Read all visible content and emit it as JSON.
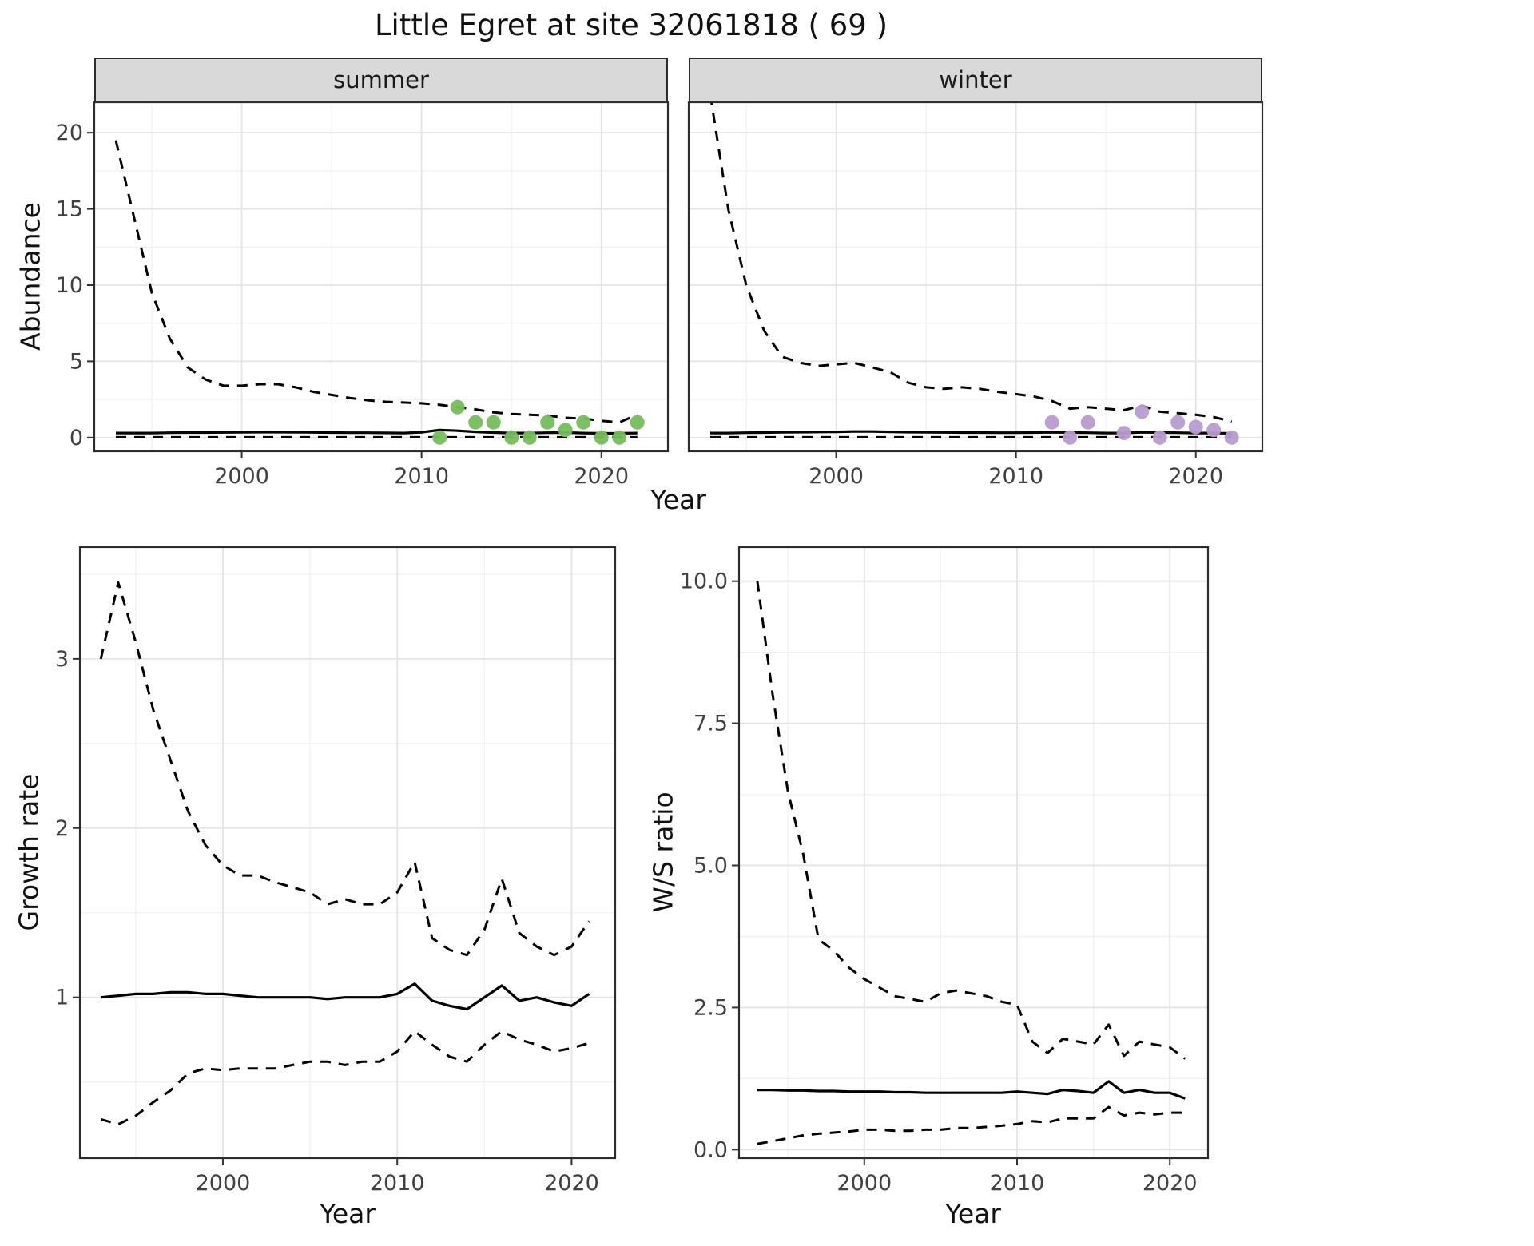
{
  "title": "Little Egret at site 32061818 ( 69 )",
  "colors": {
    "summer_points": "#74BE58",
    "winter_points": "#B69CD0",
    "line": "#000000",
    "strip_background": "#d9d9d9"
  },
  "chart_data": [
    {
      "id": "abundance-summer",
      "type": "line",
      "facet_label": "summer",
      "xlabel": "Year",
      "ylabel": "Abundance",
      "xlim": [
        1991.8,
        2023.7
      ],
      "ylim": [
        -0.9,
        22
      ],
      "xticks": {
        "values": [
          2000,
          2010,
          2020
        ],
        "labels": [
          "2000",
          "2010",
          "2020"
        ]
      },
      "yticks": {
        "values": [
          0,
          5,
          10,
          15,
          20
        ],
        "labels": [
          "0",
          "5",
          "10",
          "15",
          "20"
        ]
      },
      "grid": "major+minor",
      "legend": "none",
      "series": [
        {
          "name": "upper-ci",
          "style": "dashed",
          "x": [
            1993,
            1994,
            1995,
            1996,
            1997,
            1998,
            1999,
            2000,
            2001,
            2002,
            2003,
            2004,
            2005,
            2006,
            2007,
            2008,
            2009,
            2010,
            2011,
            2012,
            2013,
            2014,
            2015,
            2016,
            2017,
            2018,
            2019,
            2020,
            2021,
            2022
          ],
          "y": [
            19.5,
            14.5,
            9.5,
            6.5,
            4.6,
            3.8,
            3.4,
            3.4,
            3.5,
            3.5,
            3.3,
            3.0,
            2.8,
            2.6,
            2.45,
            2.35,
            2.3,
            2.25,
            2.15,
            2.0,
            1.85,
            1.65,
            1.55,
            1.5,
            1.45,
            1.3,
            1.25,
            1.1,
            1.0,
            1.5
          ]
        },
        {
          "name": "median",
          "style": "solid",
          "x": [
            1993,
            1994,
            1995,
            1996,
            1997,
            1998,
            1999,
            2000,
            2001,
            2002,
            2003,
            2004,
            2005,
            2006,
            2007,
            2008,
            2009,
            2010,
            2011,
            2012,
            2013,
            2014,
            2015,
            2016,
            2017,
            2018,
            2019,
            2020,
            2021,
            2022
          ],
          "y": [
            0.3,
            0.3,
            0.3,
            0.32,
            0.33,
            0.33,
            0.34,
            0.35,
            0.36,
            0.36,
            0.35,
            0.34,
            0.33,
            0.32,
            0.32,
            0.31,
            0.3,
            0.35,
            0.5,
            0.45,
            0.38,
            0.33,
            0.3,
            0.3,
            0.32,
            0.33,
            0.3,
            0.28,
            0.28,
            0.3
          ]
        },
        {
          "name": "lower-ci",
          "style": "dashed",
          "x": [
            1993,
            1994,
            1995,
            1996,
            1997,
            1998,
            1999,
            2000,
            2001,
            2002,
            2003,
            2004,
            2005,
            2006,
            2007,
            2008,
            2009,
            2010,
            2011,
            2012,
            2013,
            2014,
            2015,
            2016,
            2017,
            2018,
            2019,
            2020,
            2021,
            2022
          ],
          "y": [
            0.02,
            0.02,
            0.02,
            0.02,
            0.02,
            0.02,
            0.02,
            0.02,
            0.02,
            0.02,
            0.02,
            0.02,
            0.02,
            0.02,
            0.02,
            0.02,
            0.02,
            0.02,
            0.02,
            0.02,
            0.02,
            0.02,
            0.02,
            0.02,
            0.02,
            0.02,
            0.02,
            0.02,
            0.02,
            0.02
          ]
        },
        {
          "name": "observed-counts",
          "style": "points",
          "color": "#74BE58",
          "x": [
            2011,
            2012,
            2013,
            2014,
            2015,
            2016,
            2017,
            2018,
            2019,
            2020,
            2021,
            2022
          ],
          "y": [
            0,
            2,
            1,
            1,
            0,
            0,
            1,
            0.5,
            1,
            0,
            0,
            1
          ]
        }
      ]
    },
    {
      "id": "abundance-winter",
      "type": "line",
      "facet_label": "winter",
      "xlabel": "Year",
      "ylabel": "Abundance",
      "xlim": [
        1991.8,
        2023.7
      ],
      "ylim": [
        -0.9,
        22
      ],
      "xticks": {
        "values": [
          2000,
          2010,
          2020
        ],
        "labels": [
          "2000",
          "2010",
          "2020"
        ]
      },
      "yticks": {
        "values": [
          0,
          5,
          10,
          15,
          20
        ],
        "labels": [
          "0",
          "5",
          "10",
          "15",
          "20"
        ]
      },
      "grid": "major+minor",
      "legend": "none",
      "series": [
        {
          "name": "upper-ci",
          "style": "dashed",
          "x": [
            1993,
            1994,
            1995,
            1996,
            1997,
            1998,
            1999,
            2000,
            2001,
            2002,
            2003,
            2004,
            2005,
            2006,
            2007,
            2008,
            2009,
            2010,
            2011,
            2012,
            2013,
            2014,
            2015,
            2016,
            2017,
            2018,
            2019,
            2020,
            2021,
            2022
          ],
          "y": [
            22.5,
            15.0,
            10.0,
            7.0,
            5.3,
            4.9,
            4.7,
            4.8,
            4.9,
            4.6,
            4.3,
            3.6,
            3.3,
            3.2,
            3.3,
            3.2,
            3.0,
            2.85,
            2.7,
            2.4,
            1.9,
            2.0,
            1.9,
            1.8,
            2.1,
            1.7,
            1.6,
            1.5,
            1.35,
            1.05
          ]
        },
        {
          "name": "median",
          "style": "solid",
          "x": [
            1993,
            1994,
            1995,
            1996,
            1997,
            1998,
            1999,
            2000,
            2001,
            2002,
            2003,
            2004,
            2005,
            2006,
            2007,
            2008,
            2009,
            2010,
            2011,
            2012,
            2013,
            2014,
            2015,
            2016,
            2017,
            2018,
            2019,
            2020,
            2021,
            2022
          ],
          "y": [
            0.3,
            0.3,
            0.32,
            0.33,
            0.35,
            0.36,
            0.37,
            0.38,
            0.4,
            0.4,
            0.38,
            0.36,
            0.35,
            0.34,
            0.33,
            0.33,
            0.32,
            0.32,
            0.33,
            0.35,
            0.33,
            0.32,
            0.3,
            0.3,
            0.35,
            0.33,
            0.32,
            0.3,
            0.3,
            0.28
          ]
        },
        {
          "name": "lower-ci",
          "style": "dashed",
          "x": [
            1993,
            1994,
            1995,
            1996,
            1997,
            1998,
            1999,
            2000,
            2001,
            2002,
            2003,
            2004,
            2005,
            2006,
            2007,
            2008,
            2009,
            2010,
            2011,
            2012,
            2013,
            2014,
            2015,
            2016,
            2017,
            2018,
            2019,
            2020,
            2021,
            2022
          ],
          "y": [
            0.02,
            0.02,
            0.02,
            0.02,
            0.02,
            0.02,
            0.02,
            0.02,
            0.02,
            0.02,
            0.02,
            0.02,
            0.02,
            0.02,
            0.02,
            0.02,
            0.02,
            0.02,
            0.02,
            0.02,
            0.02,
            0.02,
            0.02,
            0.02,
            0.02,
            0.02,
            0.02,
            0.02,
            0.02,
            0.02
          ]
        },
        {
          "name": "observed-counts",
          "style": "points",
          "color": "#B69CD0",
          "x": [
            2012,
            2013,
            2014,
            2016,
            2017,
            2018,
            2019,
            2020,
            2021,
            2022
          ],
          "y": [
            1,
            0,
            1,
            0.3,
            1.7,
            0,
            1,
            0.7,
            0.5,
            0
          ]
        }
      ]
    },
    {
      "id": "growth-rate",
      "type": "line",
      "facet_label": "",
      "xlabel": "Year",
      "ylabel": "Growth rate",
      "xlim": [
        1991.8,
        2022.5
      ],
      "ylim": [
        0.05,
        3.66
      ],
      "xticks": {
        "values": [
          2000,
          2010,
          2020
        ],
        "labels": [
          "2000",
          "2010",
          "2020"
        ]
      },
      "yticks": {
        "values": [
          1,
          2,
          3
        ],
        "labels": [
          "1",
          "2",
          "3"
        ]
      },
      "grid": "major+minor",
      "legend": "none",
      "series": [
        {
          "name": "upper-ci",
          "style": "dashed",
          "x": [
            1993,
            1994,
            1995,
            1996,
            1997,
            1998,
            1999,
            2000,
            2001,
            2002,
            2003,
            2004,
            2005,
            2006,
            2007,
            2008,
            2009,
            2010,
            2011,
            2012,
            2013,
            2014,
            2015,
            2016,
            2017,
            2018,
            2019,
            2020,
            2021
          ],
          "y": [
            3.0,
            3.45,
            3.1,
            2.7,
            2.4,
            2.1,
            1.9,
            1.78,
            1.72,
            1.72,
            1.68,
            1.65,
            1.62,
            1.55,
            1.58,
            1.55,
            1.55,
            1.62,
            1.8,
            1.35,
            1.28,
            1.25,
            1.4,
            1.7,
            1.38,
            1.3,
            1.25,
            1.3,
            1.45
          ]
        },
        {
          "name": "median",
          "style": "solid",
          "x": [
            1993,
            1994,
            1995,
            1996,
            1997,
            1998,
            1999,
            2000,
            2001,
            2002,
            2003,
            2004,
            2005,
            2006,
            2007,
            2008,
            2009,
            2010,
            2011,
            2012,
            2013,
            2014,
            2015,
            2016,
            2017,
            2018,
            2019,
            2020,
            2021
          ],
          "y": [
            1.0,
            1.01,
            1.02,
            1.02,
            1.03,
            1.03,
            1.02,
            1.02,
            1.01,
            1.0,
            1.0,
            1.0,
            1.0,
            0.99,
            1.0,
            1.0,
            1.0,
            1.02,
            1.08,
            0.98,
            0.95,
            0.93,
            1.0,
            1.07,
            0.98,
            1.0,
            0.97,
            0.95,
            1.02
          ]
        },
        {
          "name": "lower-ci",
          "style": "dashed",
          "x": [
            1993,
            1994,
            1995,
            1996,
            1997,
            1998,
            1999,
            2000,
            2001,
            2002,
            2003,
            2004,
            2005,
            2006,
            2007,
            2008,
            2009,
            2010,
            2011,
            2012,
            2013,
            2014,
            2015,
            2016,
            2017,
            2018,
            2019,
            2020,
            2021
          ],
          "y": [
            0.28,
            0.25,
            0.3,
            0.38,
            0.45,
            0.55,
            0.58,
            0.57,
            0.58,
            0.58,
            0.58,
            0.6,
            0.62,
            0.62,
            0.6,
            0.62,
            0.62,
            0.68,
            0.8,
            0.72,
            0.65,
            0.62,
            0.72,
            0.8,
            0.75,
            0.72,
            0.68,
            0.7,
            0.73
          ]
        }
      ]
    },
    {
      "id": "ws-ratio",
      "type": "line",
      "facet_label": "",
      "xlabel": "Year",
      "ylabel": "W/S ratio",
      "xlim": [
        1991.8,
        2022.5
      ],
      "ylim": [
        -0.15,
        10.6
      ],
      "xticks": {
        "values": [
          2000,
          2010,
          2020
        ],
        "labels": [
          "2000",
          "2010",
          "2020"
        ]
      },
      "yticks": {
        "values": [
          0,
          2.5,
          5,
          7.5,
          10
        ],
        "labels": [
          "0.0",
          "2.5",
          "5.0",
          "7.5",
          "10.0"
        ]
      },
      "grid": "major+minor",
      "legend": "none",
      "series": [
        {
          "name": "upper-ci",
          "style": "dashed",
          "x": [
            1993,
            1994,
            1995,
            1996,
            1997,
            1998,
            1999,
            2000,
            2001,
            2002,
            2003,
            2004,
            2005,
            2006,
            2007,
            2008,
            2009,
            2010,
            2011,
            2012,
            2013,
            2014,
            2015,
            2016,
            2017,
            2018,
            2019,
            2020,
            2021
          ],
          "y": [
            10.0,
            8.0,
            6.3,
            5.2,
            3.7,
            3.5,
            3.2,
            3.0,
            2.85,
            2.7,
            2.65,
            2.6,
            2.75,
            2.8,
            2.75,
            2.7,
            2.6,
            2.55,
            1.9,
            1.7,
            1.95,
            1.9,
            1.85,
            2.2,
            1.65,
            1.9,
            1.85,
            1.8,
            1.6
          ]
        },
        {
          "name": "median",
          "style": "solid",
          "x": [
            1993,
            1994,
            1995,
            1996,
            1997,
            1998,
            1999,
            2000,
            2001,
            2002,
            2003,
            2004,
            2005,
            2006,
            2007,
            2008,
            2009,
            2010,
            2011,
            2012,
            2013,
            2014,
            2015,
            2016,
            2017,
            2018,
            2019,
            2020,
            2021
          ],
          "y": [
            1.05,
            1.05,
            1.04,
            1.04,
            1.03,
            1.03,
            1.02,
            1.02,
            1.02,
            1.01,
            1.01,
            1.0,
            1.0,
            1.0,
            1.0,
            1.0,
            1.0,
            1.02,
            1.0,
            0.98,
            1.05,
            1.03,
            1.0,
            1.2,
            1.0,
            1.05,
            1.0,
            1.0,
            0.9
          ]
        },
        {
          "name": "lower-ci",
          "style": "dashed",
          "x": [
            1993,
            1994,
            1995,
            1996,
            1997,
            1998,
            1999,
            2000,
            2001,
            2002,
            2003,
            2004,
            2005,
            2006,
            2007,
            2008,
            2009,
            2010,
            2011,
            2012,
            2013,
            2014,
            2015,
            2016,
            2017,
            2018,
            2019,
            2020,
            2021
          ],
          "y": [
            0.1,
            0.15,
            0.2,
            0.25,
            0.28,
            0.3,
            0.32,
            0.35,
            0.35,
            0.33,
            0.33,
            0.35,
            0.35,
            0.38,
            0.38,
            0.4,
            0.42,
            0.45,
            0.5,
            0.48,
            0.55,
            0.55,
            0.55,
            0.75,
            0.6,
            0.65,
            0.62,
            0.65,
            0.65
          ]
        }
      ]
    }
  ]
}
